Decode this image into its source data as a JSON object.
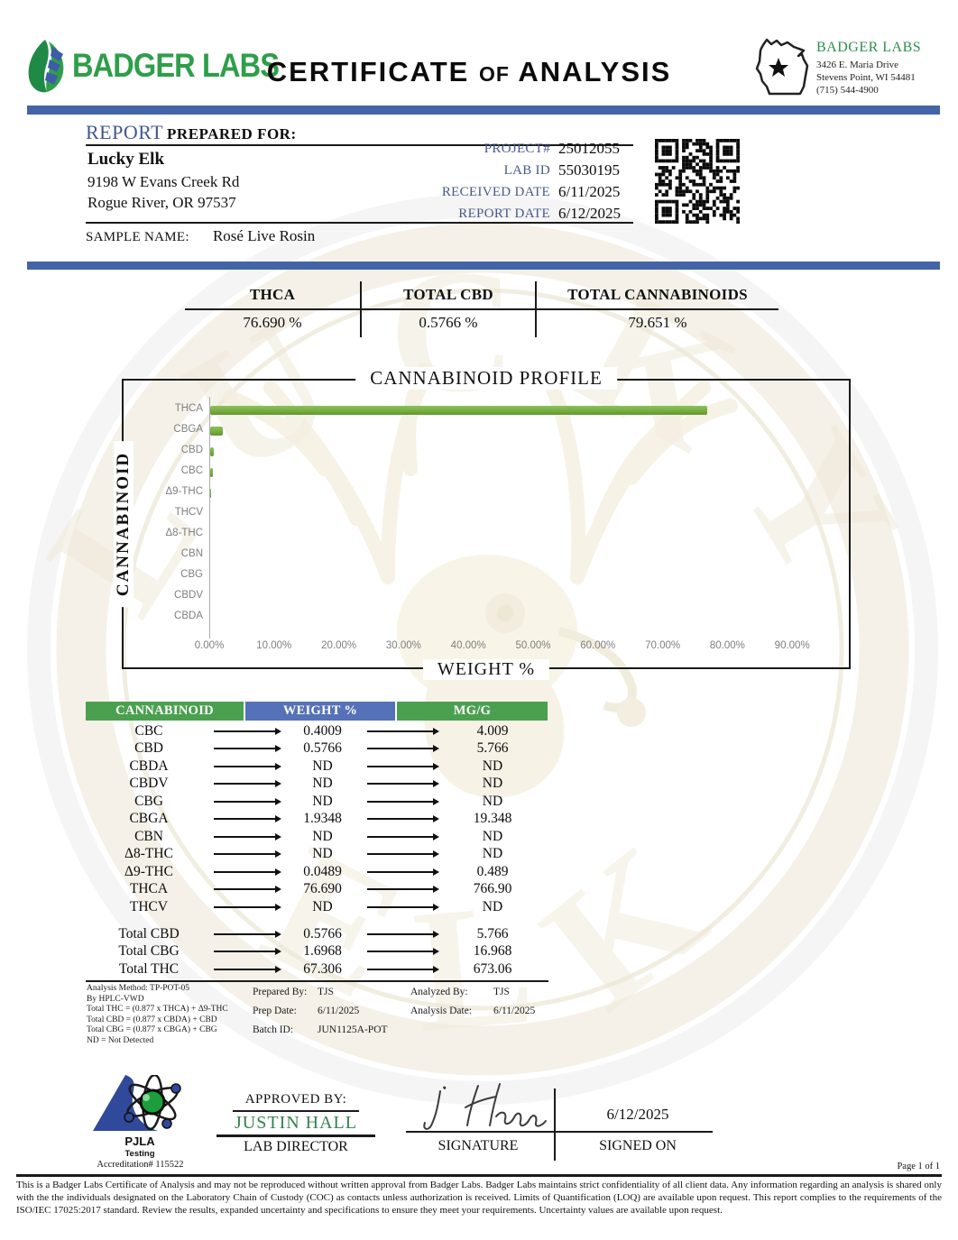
{
  "header": {
    "logo_text": "BADGER LABS",
    "title_main1": "CERTIFICATE",
    "title_of": "OF",
    "title_main2": "ANALYSIS",
    "lab_info": {
      "name": "BADGER LABS",
      "address1": "3426 E. Maria Drive",
      "address2": "Stevens Point, WI 54481",
      "phone": "(715) 544-4900"
    }
  },
  "icons": {
    "logo": "badger-labs-leaf-icon",
    "state": "wisconsin-state-icon",
    "qr": "qr-code",
    "accreditation": "pjla-atom-icon",
    "watermark": "lucky-elk-watermark"
  },
  "colors": {
    "accent_blue": "#4464a8",
    "label_blue": "#46598c",
    "table_green": "#4ba04f",
    "table_blue": "#5571b7",
    "bar_green": "#76ae3f",
    "logo_green": "#2f9e4a",
    "approver_green": "#36824f"
  },
  "report": {
    "heading_report": "REPORT",
    "heading_rest": "PREPARED FOR:",
    "client": {
      "name": "Lucky Elk",
      "address1": "9198 W Evans Creek Rd",
      "address2": "Rogue River, OR 97537"
    },
    "meta": [
      {
        "label": "PROJECT#",
        "value": "25012055"
      },
      {
        "label": "LAB ID",
        "value": "55030195"
      },
      {
        "label": "RECEIVED DATE",
        "value": "6/11/2025"
      },
      {
        "label": "REPORT DATE",
        "value": "6/12/2025"
      }
    ],
    "sample_name_label": "SAMPLE NAME:",
    "sample_name": "Rosé Live Rosin"
  },
  "summary": {
    "columns": [
      {
        "label": "THCA",
        "value": "76.690 %"
      },
      {
        "label": "TOTAL CBD",
        "value": "0.5766 %"
      },
      {
        "label": "TOTAL CANNABINOIDS",
        "value": "79.651 %"
      }
    ]
  },
  "chart_data": {
    "type": "bar",
    "orientation": "horizontal",
    "title": "CANNABINOID PROFILE",
    "xlabel": "WEIGHT %",
    "ylabel": "CANNABINOID",
    "categories": [
      "THCA",
      "CBGA",
      "CBD",
      "CBC",
      "Δ9-THC",
      "THCV",
      "Δ8-THC",
      "CBN",
      "CBG",
      "CBDV",
      "CBDA"
    ],
    "values": [
      76.69,
      1.9348,
      0.5766,
      0.4009,
      0.0489,
      0,
      0,
      0,
      0,
      0,
      0
    ],
    "xlim": [
      0,
      98
    ],
    "xticks": [
      "0.00%",
      "10.00%",
      "20.00%",
      "30.00%",
      "40.00%",
      "50.00%",
      "60.00%",
      "70.00%",
      "80.00%",
      "90.00%"
    ],
    "xtick_values": [
      0,
      10,
      20,
      30,
      40,
      50,
      60,
      70,
      80,
      90
    ],
    "grid": false,
    "bar_color": "#76ae3f"
  },
  "table": {
    "headers": [
      "CANNABINOID",
      "WEIGHT %",
      "MG/G"
    ],
    "rows": [
      {
        "name": "CBC",
        "weight": "0.4009",
        "mgg": "4.009"
      },
      {
        "name": "CBD",
        "weight": "0.5766",
        "mgg": "5.766"
      },
      {
        "name": "CBDA",
        "weight": "ND",
        "mgg": "ND"
      },
      {
        "name": "CBDV",
        "weight": "ND",
        "mgg": "ND"
      },
      {
        "name": "CBG",
        "weight": "ND",
        "mgg": "ND"
      },
      {
        "name": "CBGA",
        "weight": "1.9348",
        "mgg": "19.348"
      },
      {
        "name": "CBN",
        "weight": "ND",
        "mgg": "ND"
      },
      {
        "name": "Δ8-THC",
        "weight": "ND",
        "mgg": "ND"
      },
      {
        "name": "Δ9-THC",
        "weight": "0.0489",
        "mgg": "0.489"
      },
      {
        "name": "THCA",
        "weight": "76.690",
        "mgg": "766.90"
      },
      {
        "name": "THCV",
        "weight": "ND",
        "mgg": "ND"
      }
    ],
    "totals": [
      {
        "name": "Total CBD",
        "weight": "0.5766",
        "mgg": "5.766"
      },
      {
        "name": "Total CBG",
        "weight": "1.6968",
        "mgg": "16.968"
      },
      {
        "name": "Total THC",
        "weight": "67.306",
        "mgg": "673.06"
      }
    ]
  },
  "footnotes": {
    "method_lines": [
      "Analysis Method: TP-POT-05",
      "By HPLC-VWD",
      "Total THC = (0.877 x  THCA) + Δ9-THC",
      "Total CBD = (0.877 x  CBDA) + CBD",
      "Total CBG = (0.877 x  CBGA) + CBG",
      "ND = Not Detected"
    ],
    "prepared": [
      {
        "label": "Prepared By:",
        "value": "TJS"
      },
      {
        "label": "Prep Date:",
        "value": "6/11/2025"
      },
      {
        "label": "Batch ID:",
        "value": "JUN1125A-POT"
      }
    ],
    "analyzed": [
      {
        "label": "Analyzed By:",
        "value": "TJS"
      },
      {
        "label": "Analysis Date:",
        "value": "6/11/2025"
      }
    ]
  },
  "approval": {
    "approved_by_label": "APPROVED BY:",
    "approver": "JUSTIN HALL",
    "approver_title": "LAB DIRECTOR",
    "signature_label": "SIGNATURE",
    "signed_on_label": "SIGNED ON",
    "signed_date": "6/12/2025",
    "accreditation": {
      "org": "PJLA",
      "sub": "Testing",
      "number": "Accreditation# 115522"
    }
  },
  "footer": {
    "page": "Page 1 of 1",
    "disclaimer": "This is a Badger Labs Certificate of Analysis and may not be reproduced without written approval from Badger Labs. Badger Labs maintains strict confidentiality of all client data. Any information regarding an analysis is shared only with the the individuals designated on the Laboratory Chain of Custody (COC) as contacts unless authorization is received. Limits of Quantification (LOQ) are available upon request. This report complies to the requirements of the ISO/IEC 17025:2017 standard. Review the results, expanded uncertainty and specifications to ensure they meet your requirements. Uncertainty values are available upon request."
  }
}
